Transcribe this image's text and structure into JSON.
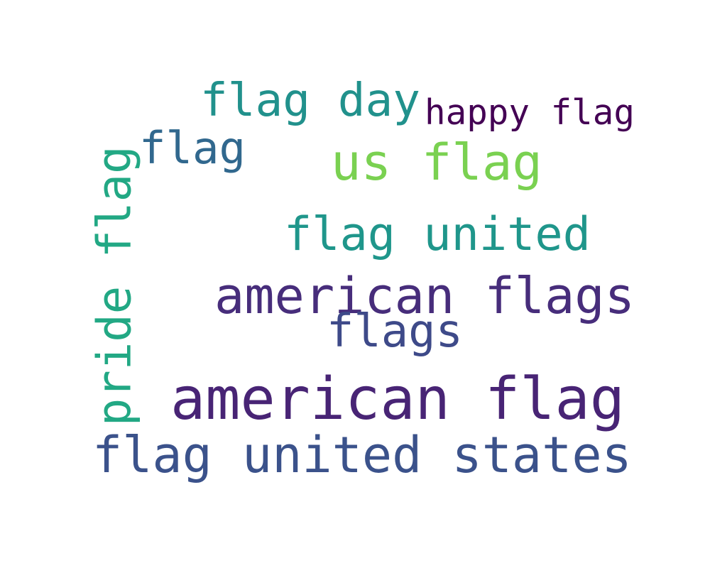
{
  "words": [
    {
      "text": "american flag",
      "color": "#482475"
    },
    {
      "text": "flag united states",
      "color": "#3b528b"
    },
    {
      "text": "american flags",
      "color": "#472d7b"
    },
    {
      "text": "us flag",
      "color": "#7ad151"
    },
    {
      "text": "flag day",
      "color": "#21918c"
    },
    {
      "text": "flag united",
      "color": "#1f968b"
    },
    {
      "text": "flags",
      "color": "#3e4a89"
    },
    {
      "text": "pride flag",
      "color": "#22a884"
    },
    {
      "text": "flag",
      "color": "#31688e"
    },
    {
      "text": "happy flag",
      "color": "#440154"
    }
  ]
}
